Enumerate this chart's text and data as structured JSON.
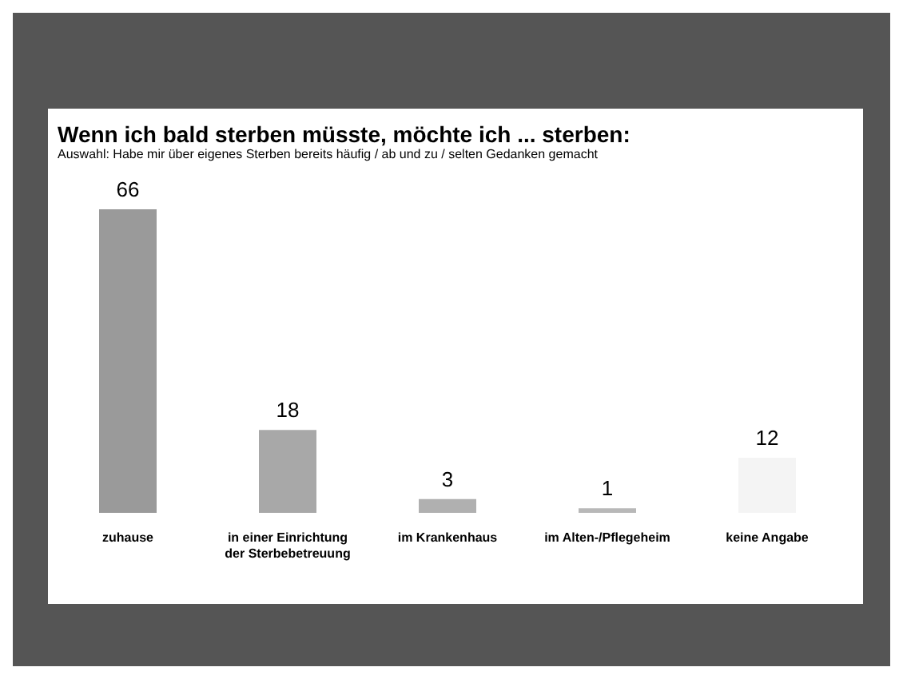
{
  "chart_data": {
    "type": "bar",
    "title": "Wenn ich bald sterben müsste, möchte ich ... sterben:",
    "subtitle": "Auswahl: Habe mir über eigenes Sterben bereits häufig / ab und zu / selten Gedanken gemacht",
    "categories": [
      "zuhause",
      "in einer Einrichtung der Sterbebetreuung",
      "im Krankenhaus",
      "im Alten-/Pflegeheim",
      "keine Angabe"
    ],
    "values": [
      66,
      18,
      3,
      1,
      12
    ],
    "colors": [
      "#9a9a9a",
      "#a8a8a8",
      "#b0b0b0",
      "#b8b8b8",
      "#f4f4f4"
    ],
    "data_labels": true,
    "tick_labels": "x"
  }
}
